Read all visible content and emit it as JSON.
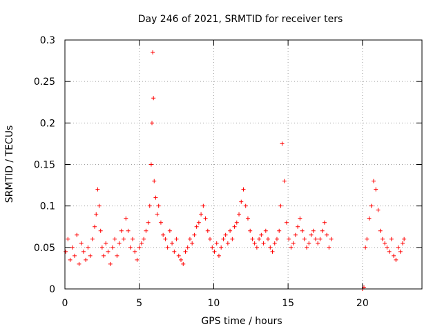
{
  "chart_data": {
    "type": "scatter",
    "title": "Day 246 of 2021, SRMTID for receiver ters",
    "xlabel": "GPS time / hours",
    "ylabel": "SRMTID / TECUs",
    "xlim": [
      0,
      24
    ],
    "ylim": [
      0,
      0.3
    ],
    "x_ticks": [
      0,
      5,
      10,
      15,
      20
    ],
    "y_ticks": [
      0,
      0.05,
      0.1,
      0.15,
      0.2,
      0.25,
      0.3
    ],
    "x_tick_labels": [
      "0",
      "5",
      "10",
      "15",
      "20"
    ],
    "y_tick_labels": [
      "0",
      "0.05",
      "0.1",
      "0.15",
      "0.2",
      "0.25",
      "0.3"
    ],
    "grid": true,
    "marker": "+",
    "color": "#ff0000",
    "series": [
      {
        "name": "SRMTID",
        "x": [
          0.05,
          0.2,
          0.35,
          0.5,
          0.65,
          0.8,
          0.95,
          1.1,
          1.25,
          1.4,
          1.55,
          1.7,
          1.85,
          2.0,
          2.1,
          2.2,
          2.3,
          2.4,
          2.5,
          2.6,
          2.75,
          2.9,
          3.05,
          3.2,
          3.35,
          3.5,
          3.65,
          3.8,
          3.95,
          4.1,
          4.25,
          4.4,
          4.55,
          4.7,
          4.85,
          5.0,
          5.15,
          5.3,
          5.45,
          5.6,
          5.7,
          5.8,
          5.85,
          5.9,
          5.95,
          6.0,
          6.1,
          6.2,
          6.3,
          6.45,
          6.6,
          6.75,
          6.9,
          7.05,
          7.2,
          7.35,
          7.5,
          7.65,
          7.8,
          7.95,
          8.1,
          8.25,
          8.4,
          8.55,
          8.7,
          8.85,
          9.0,
          9.15,
          9.3,
          9.45,
          9.6,
          9.75,
          9.9,
          10.05,
          10.2,
          10.35,
          10.5,
          10.65,
          10.8,
          10.95,
          11.1,
          11.25,
          11.4,
          11.55,
          11.7,
          11.85,
          12.0,
          12.15,
          12.3,
          12.45,
          12.6,
          12.75,
          12.9,
          13.05,
          13.2,
          13.35,
          13.5,
          13.65,
          13.8,
          13.95,
          14.1,
          14.25,
          14.4,
          14.5,
          14.6,
          14.75,
          14.9,
          15.05,
          15.2,
          15.35,
          15.5,
          15.65,
          15.8,
          15.95,
          16.1,
          16.25,
          16.4,
          16.55,
          16.7,
          16.85,
          17.0,
          17.15,
          17.3,
          17.45,
          17.6,
          17.75,
          17.9,
          20.0,
          20.1,
          20.2,
          20.3,
          20.45,
          20.6,
          20.75,
          20.9,
          21.05,
          21.2,
          21.35,
          21.5,
          21.65,
          21.8,
          21.95,
          22.1,
          22.25,
          22.4,
          22.55,
          22.7,
          22.8
        ],
        "y": [
          0.045,
          0.06,
          0.035,
          0.05,
          0.04,
          0.065,
          0.03,
          0.055,
          0.045,
          0.035,
          0.05,
          0.04,
          0.06,
          0.075,
          0.09,
          0.12,
          0.1,
          0.07,
          0.05,
          0.04,
          0.055,
          0.045,
          0.03,
          0.05,
          0.06,
          0.04,
          0.055,
          0.07,
          0.06,
          0.085,
          0.07,
          0.05,
          0.06,
          0.045,
          0.035,
          0.05,
          0.055,
          0.06,
          0.07,
          0.08,
          0.1,
          0.15,
          0.2,
          0.285,
          0.23,
          0.13,
          0.11,
          0.09,
          0.1,
          0.08,
          0.065,
          0.06,
          0.05,
          0.07,
          0.055,
          0.045,
          0.06,
          0.04,
          0.035,
          0.03,
          0.045,
          0.05,
          0.06,
          0.055,
          0.065,
          0.075,
          0.08,
          0.09,
          0.1,
          0.085,
          0.07,
          0.06,
          0.05,
          0.045,
          0.055,
          0.04,
          0.05,
          0.06,
          0.065,
          0.055,
          0.07,
          0.06,
          0.075,
          0.08,
          0.09,
          0.105,
          0.12,
          0.1,
          0.085,
          0.07,
          0.06,
          0.055,
          0.05,
          0.06,
          0.065,
          0.055,
          0.07,
          0.06,
          0.05,
          0.045,
          0.055,
          0.06,
          0.07,
          0.1,
          0.175,
          0.13,
          0.08,
          0.06,
          0.05,
          0.055,
          0.065,
          0.075,
          0.085,
          0.07,
          0.06,
          0.05,
          0.055,
          0.065,
          0.07,
          0.06,
          0.055,
          0.06,
          0.07,
          0.08,
          0.065,
          0.05,
          0.06,
          0.0,
          0.002,
          0.05,
          0.06,
          0.085,
          0.1,
          0.13,
          0.12,
          0.095,
          0.07,
          0.06,
          0.055,
          0.05,
          0.045,
          0.06,
          0.04,
          0.035,
          0.05,
          0.045,
          0.055,
          0.06
        ]
      }
    ]
  }
}
